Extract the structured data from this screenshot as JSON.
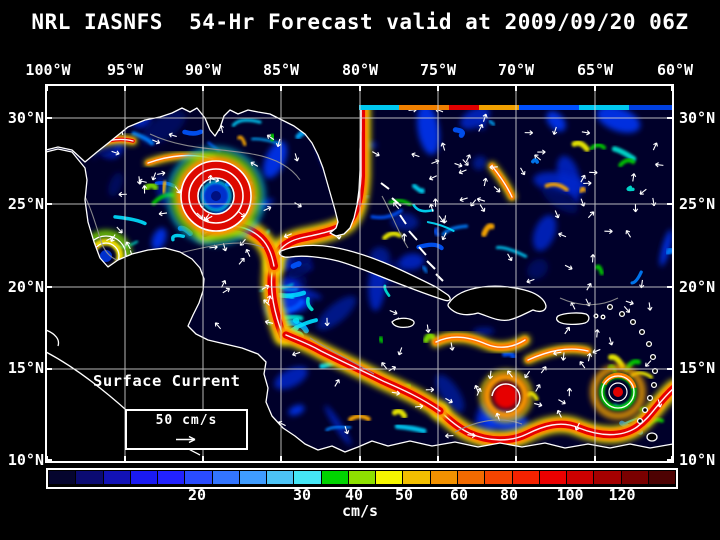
{
  "title": "NRL IASNFS  54-Hr Forecast valid at 2009/09/20 06Z",
  "map": {
    "x_axis": {
      "labels": [
        "100°W",
        "95°W",
        "90°W",
        "85°W",
        "80°W",
        "75°W",
        "70°W",
        "65°W",
        "60°W"
      ]
    },
    "y_axis": {
      "labels": [
        "30°N",
        "25°N",
        "20°N",
        "15°N",
        "10°N"
      ]
    },
    "annotation": {
      "label": "Surface Current",
      "scale_label": "50 cm/s"
    }
  },
  "colorbar": {
    "unit": "cm/s",
    "tick_labels": [
      "20",
      "30",
      "40",
      "50",
      "60",
      "80",
      "100",
      "120"
    ],
    "cell_colors": [
      "#05052e",
      "#0b0b72",
      "#1212b6",
      "#1a1af2",
      "#2222ff",
      "#2a4cff",
      "#3375ff",
      "#3f9cff",
      "#4cc3f6",
      "#45e6f6",
      "#00d400",
      "#8ee000",
      "#f6f600",
      "#f2be00",
      "#f29100",
      "#f26a00",
      "#f54400",
      "#f52200",
      "#ea0000",
      "#cc0000",
      "#a50000",
      "#7a0000",
      "#4d0202"
    ]
  },
  "chart_data": {
    "type": "heatmap",
    "title": "NRL IASNFS 54-Hr Forecast valid at 2009/09/20 06Z",
    "variable": "Surface Current speed",
    "unit": "cm/s",
    "x_ticks_lon": [
      -100,
      -95,
      -90,
      -85,
      -80,
      -75,
      -70,
      -65,
      -60
    ],
    "y_ticks_lat": [
      30,
      25,
      20,
      15,
      10
    ],
    "colorbar_ticks": [
      20,
      30,
      40,
      50,
      60,
      80,
      100,
      120
    ],
    "vector_reference_cm_s": 50,
    "region": "Gulf of Mexico and Caribbean Sea",
    "notable_features": [
      "Loop Current ring eddy near 90W 25.5N",
      "Gulf Stream along Florida east coast",
      "Caribbean Current along Venezuela coast"
    ]
  }
}
